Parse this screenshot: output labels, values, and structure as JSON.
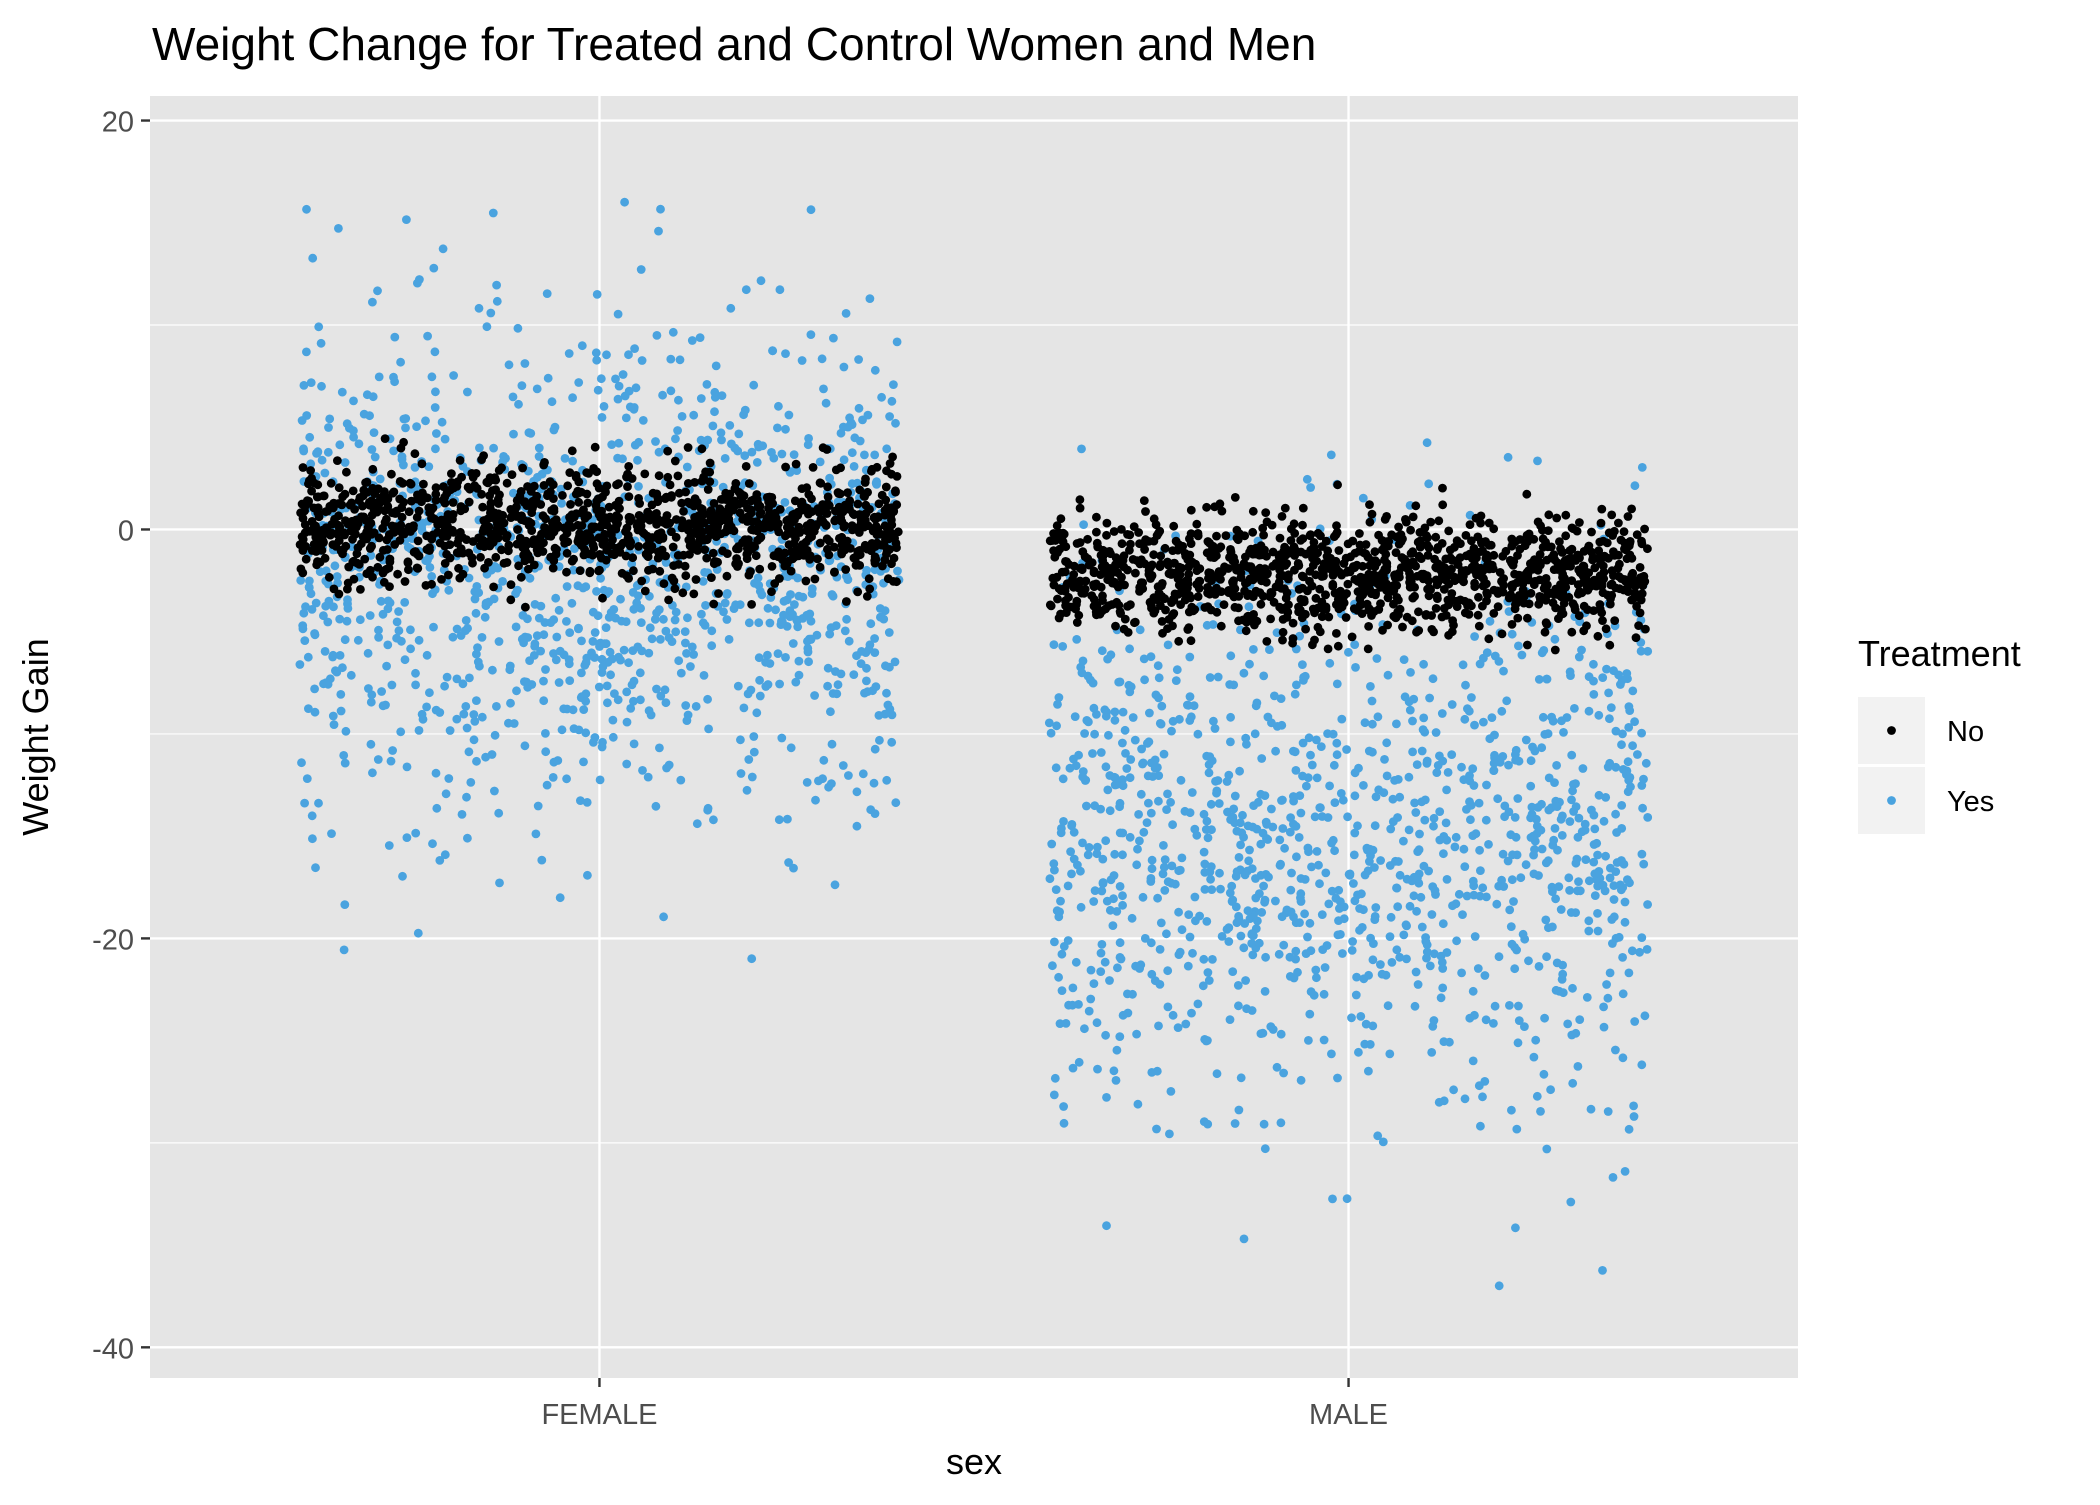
{
  "chart_data": {
    "type": "scatter",
    "title": "Weight Change for Treated and Control Women and Men",
    "xlabel": "sex",
    "ylabel": "Weight Gain",
    "categories": [
      "FEMALE",
      "MALE"
    ],
    "ylim": [
      -41.5,
      21.2
    ],
    "yticks": [
      20,
      0,
      -20,
      -40
    ],
    "ytick_labels": [
      "20",
      "0",
      "-20",
      "-40"
    ],
    "grid": true,
    "jitter_width": 0.4,
    "legend": {
      "title": "Treatment",
      "position": "right",
      "entries": [
        {
          "label": "No",
          "color": "#000000"
        },
        {
          "label": "Yes",
          "color": "#4aa3df"
        }
      ]
    },
    "panel_background": "#e5e5e5",
    "grid_color": "#ffffff",
    "series": [
      {
        "name": "No",
        "color": "#000000",
        "groups": [
          {
            "category": "FEMALE",
            "n": 1200,
            "mean": 0.2,
            "sd": 1.4,
            "min": -4.0,
            "max": 5.0
          },
          {
            "category": "MALE",
            "n": 1200,
            "mean": -2.2,
            "sd": 1.4,
            "min": -6.0,
            "max": 2.8
          }
        ]
      },
      {
        "name": "Yes",
        "color": "#4aa3df",
        "groups": [
          {
            "category": "FEMALE",
            "n": 1200,
            "mean": -2.2,
            "sd": 6.0,
            "min": -23.5,
            "max": 18.4
          },
          {
            "category": "MALE",
            "n": 1200,
            "mean": -15.0,
            "sd": 6.6,
            "min": -38.7,
            "max": 4.8
          }
        ]
      }
    ]
  }
}
